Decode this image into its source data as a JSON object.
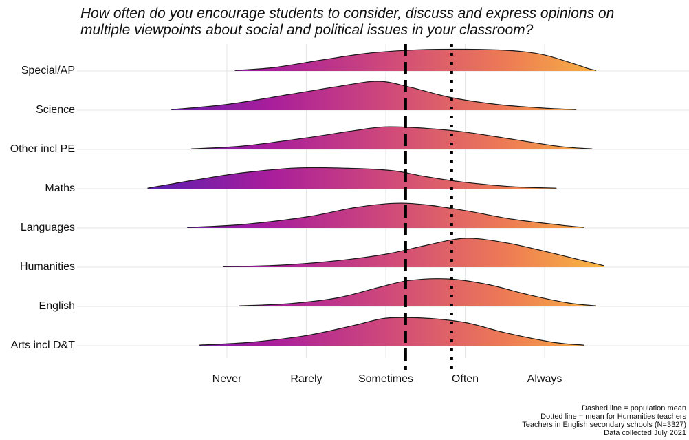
{
  "chart_data": {
    "type": "ridgeline",
    "title_lines": [
      "How often do you encourage students to consider, discuss and express opinions on",
      "multiple viewpoints about social and political issues in your classroom?"
    ],
    "x_ticks": [
      {
        "value": 1,
        "label": "Never"
      },
      {
        "value": 2,
        "label": "Rarely"
      },
      {
        "value": 3,
        "label": "Sometimes"
      },
      {
        "value": 4,
        "label": "Often"
      },
      {
        "value": 5,
        "label": "Always"
      }
    ],
    "xlim": [
      -0.3,
      6.0
    ],
    "population_mean": 3.25,
    "humanities_mean": 3.83,
    "gradient_colors": [
      "#5a1fb0",
      "#a81d9c",
      "#d0497a",
      "#ee7c54",
      "#fbc63a"
    ],
    "series": [
      {
        "name": "Special/AP",
        "x": [
          1.1,
          1.6,
          2.2,
          2.8,
          3.4,
          4.0,
          4.6,
          5.0,
          5.4,
          5.55,
          5.65
        ],
        "density": [
          0.02,
          0.12,
          0.38,
          0.62,
          0.73,
          0.75,
          0.7,
          0.55,
          0.22,
          0.08,
          0.02
        ]
      },
      {
        "name": "Science",
        "x": [
          0.3,
          1.0,
          1.8,
          2.4,
          2.9,
          3.3,
          3.8,
          4.4,
          5.0,
          5.4
        ],
        "density": [
          0.02,
          0.2,
          0.55,
          0.82,
          1.0,
          0.8,
          0.45,
          0.2,
          0.07,
          0.02
        ]
      },
      {
        "name": "Other incl PE",
        "x": [
          0.55,
          1.2,
          2.0,
          2.6,
          3.0,
          3.5,
          4.0,
          4.6,
          5.2,
          5.6
        ],
        "density": [
          0.02,
          0.12,
          0.4,
          0.65,
          0.78,
          0.73,
          0.6,
          0.35,
          0.1,
          0.02
        ]
      },
      {
        "name": "Maths",
        "x": [
          0.0,
          0.6,
          1.2,
          1.9,
          2.6,
          3.1,
          3.5,
          4.0,
          4.6,
          5.15
        ],
        "density": [
          0.02,
          0.3,
          0.55,
          0.72,
          0.7,
          0.62,
          0.42,
          0.22,
          0.07,
          0.02
        ]
      },
      {
        "name": "Languages",
        "x": [
          0.5,
          1.2,
          2.0,
          2.6,
          3.1,
          3.5,
          4.0,
          4.6,
          5.2,
          5.5
        ],
        "density": [
          0.02,
          0.12,
          0.38,
          0.7,
          0.85,
          0.8,
          0.6,
          0.3,
          0.1,
          0.02
        ]
      },
      {
        "name": "Humanities",
        "x": [
          0.95,
          1.6,
          2.3,
          3.0,
          3.5,
          4.0,
          4.5,
          5.0,
          5.45,
          5.75
        ],
        "density": [
          0.02,
          0.06,
          0.2,
          0.45,
          0.75,
          1.0,
          0.85,
          0.55,
          0.25,
          0.05
        ]
      },
      {
        "name": "English",
        "x": [
          1.15,
          1.8,
          2.4,
          2.9,
          3.3,
          3.8,
          4.3,
          4.8,
          5.3,
          5.65
        ],
        "density": [
          0.02,
          0.1,
          0.3,
          0.65,
          0.9,
          0.95,
          0.75,
          0.4,
          0.12,
          0.02
        ]
      },
      {
        "name": "Arts incl D&T",
        "x": [
          0.65,
          1.3,
          2.0,
          2.6,
          3.0,
          3.5,
          4.0,
          4.5,
          5.1,
          5.5
        ],
        "density": [
          0.02,
          0.12,
          0.35,
          0.7,
          0.95,
          0.95,
          0.8,
          0.45,
          0.12,
          0.02
        ]
      }
    ],
    "caption_lines": [
      "Dashed line = population mean",
      "Dotted line = mean for Humanities teachers",
      "Teachers in English secondary schools (N=3327)",
      "Data collected July 2021"
    ]
  }
}
